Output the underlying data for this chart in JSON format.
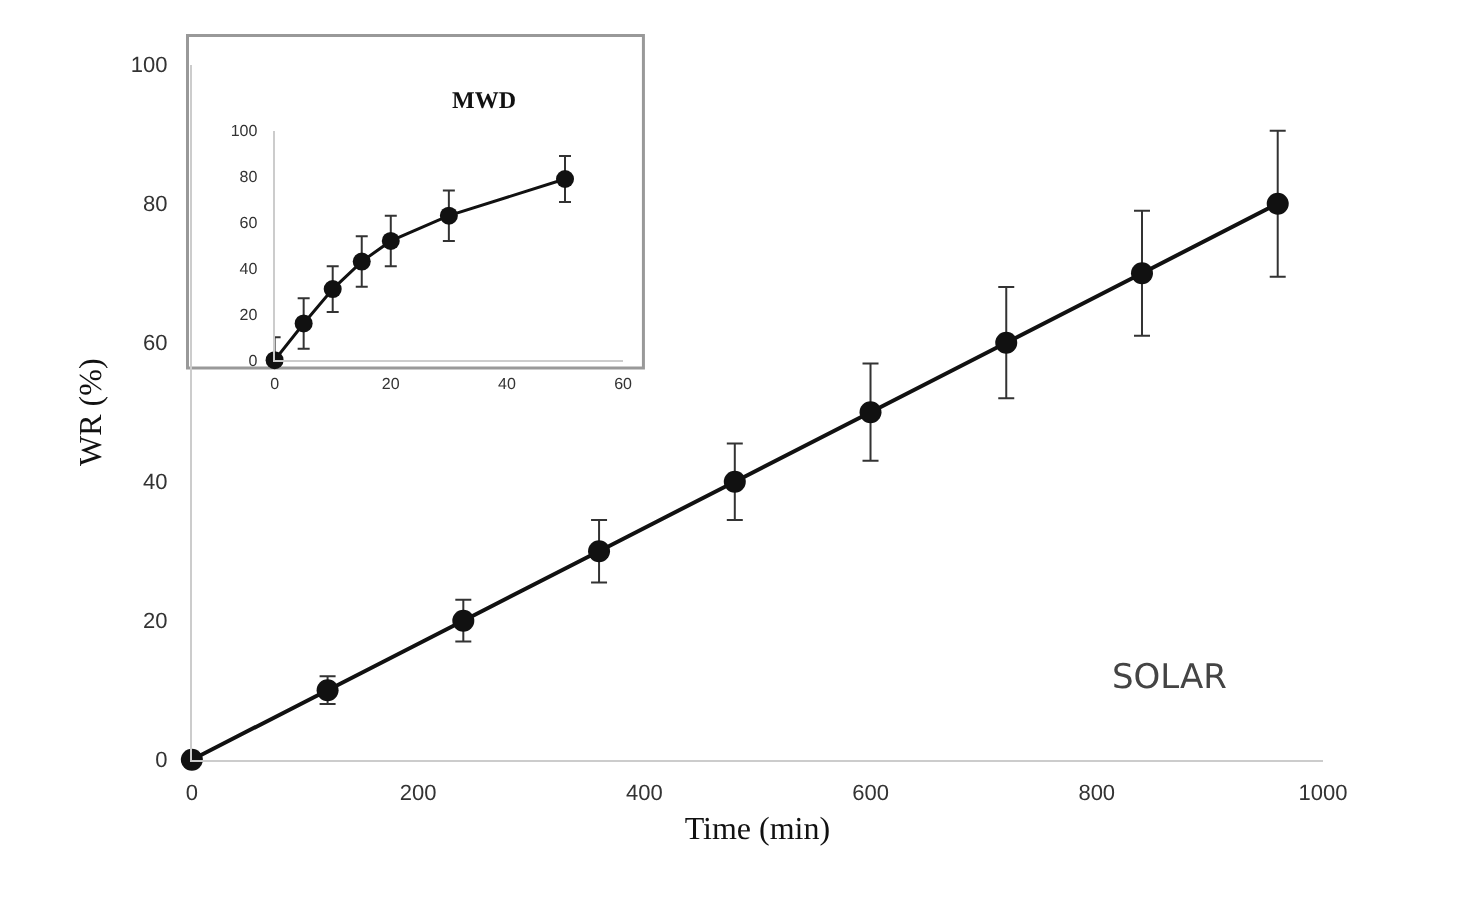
{
  "chart_data": [
    {
      "type": "line",
      "xlabel": "Time (min)",
      "ylabel": "WR (%)",
      "annotations": [
        "SOLAR"
      ],
      "x": [
        0,
        120,
        240,
        360,
        480,
        600,
        720,
        840,
        960
      ],
      "series": [
        {
          "color": "#111111",
          "values": [
            0,
            10,
            20,
            30,
            40,
            50,
            60,
            70,
            80
          ],
          "errors": [
            null,
            2,
            3,
            4.5,
            5.5,
            7,
            8,
            9,
            10.5
          ]
        }
      ],
      "xlim": [
        0,
        1000
      ],
      "xticks": [
        0,
        200,
        400,
        600,
        800,
        1000
      ],
      "ylim": [
        0,
        100
      ],
      "yticks": [
        0,
        20,
        40,
        60,
        80,
        100
      ],
      "grid": false,
      "marker": "circle",
      "line_style": "solid"
    },
    {
      "type": "line",
      "title": "MWD",
      "x": [
        0,
        5,
        10,
        15,
        20,
        30,
        50
      ],
      "series": [
        {
          "color": "#111111",
          "values": [
            0,
            16,
            31,
            43,
            52,
            63,
            79
          ],
          "errors": [
            10,
            11,
            10,
            11,
            11,
            11,
            10
          ]
        }
      ],
      "xlim": [
        0,
        60
      ],
      "xticks": [
        0,
        20,
        40,
        60
      ],
      "ylim": [
        0,
        100
      ],
      "yticks": [
        0,
        20,
        40,
        60,
        80,
        100
      ],
      "grid": false,
      "marker": "circle",
      "line_style": "solid"
    }
  ]
}
